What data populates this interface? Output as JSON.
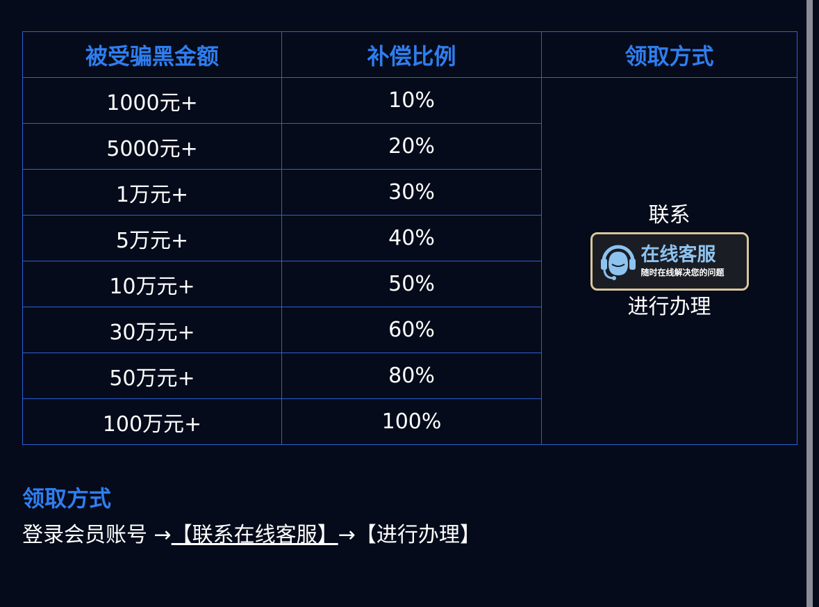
{
  "table": {
    "headers": [
      "被受骗黑金额",
      "补偿比例",
      "领取方式"
    ],
    "rows": [
      {
        "amount": "1000元+",
        "ratio": "10%"
      },
      {
        "amount": "5000元+",
        "ratio": "20%"
      },
      {
        "amount": "1万元+",
        "ratio": "30%"
      },
      {
        "amount": "5万元+",
        "ratio": "40%"
      },
      {
        "amount": "10万元+",
        "ratio": "50%"
      },
      {
        "amount": "30万元+",
        "ratio": "60%"
      },
      {
        "amount": "50万元+",
        "ratio": "80%"
      },
      {
        "amount": "100万元+",
        "ratio": "100%"
      }
    ],
    "method": {
      "before": "联系",
      "after": "进行办理",
      "badge": {
        "title": "在线客服",
        "subtitle": "随时在线解决您的问题",
        "icon": "headset-agent-icon"
      }
    }
  },
  "section": {
    "title": "领取方式",
    "step1": "登录会员账号 →",
    "link": "【联系在线客服】",
    "step2": "→【进行办理】"
  },
  "colors": {
    "background": "#050b1a",
    "accent": "#2f7ef0",
    "border": "#2b62d6"
  }
}
